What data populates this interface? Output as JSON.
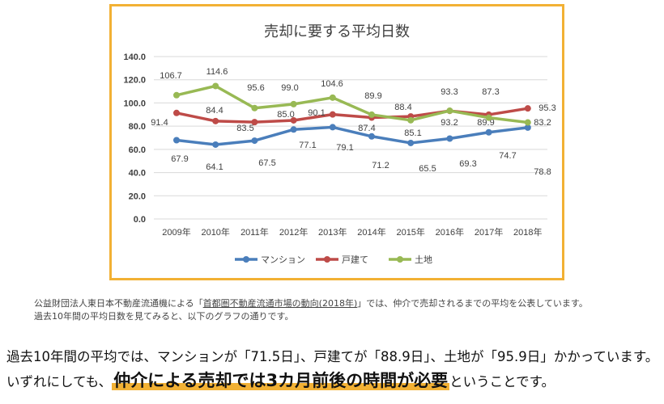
{
  "chart_data": {
    "type": "line",
    "title": "売却に要する平均日数",
    "categories": [
      "2009年",
      "2010年",
      "2011年",
      "2012年",
      "2013年",
      "2014年",
      "2015年",
      "2016年",
      "2017年",
      "2018年"
    ],
    "ylim": [
      0,
      140
    ],
    "yticks": [
      "0.0",
      "20.0",
      "40.0",
      "60.0",
      "80.0",
      "100.0",
      "120.0",
      "140.0"
    ],
    "grid": true,
    "legend": "bottom",
    "series": [
      {
        "name": "マンション",
        "color": "#4a7ebb",
        "values": [
          67.9,
          64.1,
          67.5,
          77.1,
          79.1,
          71.2,
          65.5,
          69.3,
          74.7,
          78.8
        ]
      },
      {
        "name": "戸建て",
        "color": "#be4b48",
        "values": [
          91.4,
          84.4,
          83.5,
          85.0,
          90.1,
          87.4,
          88.4,
          93.2,
          89.9,
          95.3
        ]
      },
      {
        "name": "土地",
        "color": "#98b954",
        "values": [
          106.7,
          114.6,
          95.6,
          99.0,
          104.6,
          89.9,
          85.1,
          93.3,
          87.3,
          83.2
        ]
      }
    ]
  },
  "text": {
    "caption_pre": "公益財団法人東日本不動産流通機による「",
    "caption_link": "首都圏不動産流通市場の動向(2018年)",
    "caption_post": "」では、仲介で売却されるまでの平均を公表しています。",
    "caption_line2": "過去10年間の平均日数を見てみると、以下のグラフの通りです。",
    "main_line1": "過去10年間の平均では、マンションが「71.5日」、戸建てが「88.9日」、土地が「95.9日」かかっています。",
    "main_line2_pre": "いずれにしても、",
    "main_line2_emph": "仲介による売却では3カ月前後の時間が必要",
    "main_line2_post": "ということです。"
  }
}
